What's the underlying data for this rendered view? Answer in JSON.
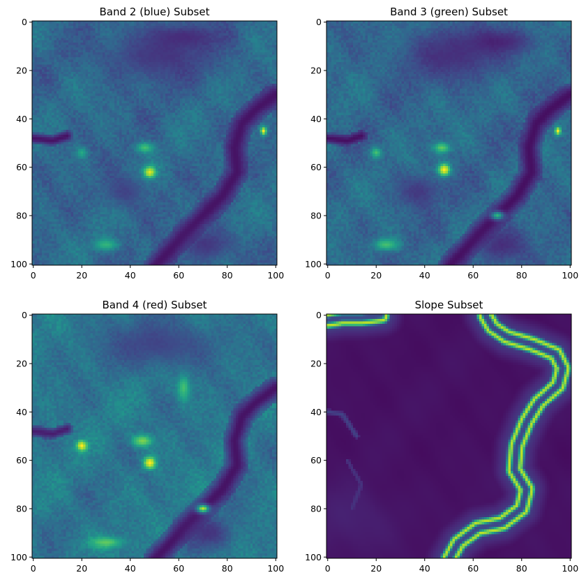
{
  "figure": {
    "colormap": "viridis",
    "colors": {
      "cmap_stops": [
        "#440154",
        "#482878",
        "#3e4a89",
        "#31688e",
        "#26828e",
        "#1f9e89",
        "#35b779",
        "#6ece58",
        "#b5de2b",
        "#fde725"
      ],
      "axis": "#000000",
      "background": "#ffffff"
    }
  },
  "chart_data": [
    {
      "type": "heatmap",
      "title": "Band 2 (blue) Subset",
      "xlabel": "",
      "ylabel": "",
      "grid": false,
      "xlim": [
        0,
        101
      ],
      "ylim": [
        101,
        0
      ],
      "xticks": [
        0,
        20,
        40,
        60,
        80,
        100
      ],
      "yticks": [
        0,
        20,
        40,
        60,
        80,
        100
      ],
      "value_range": [
        0,
        1
      ],
      "description": "Satellite reflectance subset; mostly teal/blue-green values with a dark purple meandering river channel along the right and bottom, and bright yellow hotspots near (48,62) and (95,45)",
      "features": [
        {
          "kind": "river",
          "path": [
            [
              100,
              30
            ],
            [
              92,
              36
            ],
            [
              86,
              42
            ],
            [
              83,
              52
            ],
            [
              84,
              62
            ],
            [
              78,
              72
            ],
            [
              68,
              82
            ],
            [
              62,
              88
            ],
            [
              55,
              96
            ],
            [
              50,
              101
            ]
          ],
          "width": 5,
          "value": 0.05
        },
        {
          "kind": "river",
          "path": [
            [
              0,
              48
            ],
            [
              8,
              49
            ],
            [
              14,
              47
            ]
          ],
          "width": 2.5,
          "value": 0.05
        },
        {
          "kind": "dark_region",
          "center": [
            52,
            14
          ],
          "radius": [
            26,
            12
          ],
          "value": 0.12
        },
        {
          "kind": "dark_region",
          "center": [
            62,
            6
          ],
          "radius": [
            16,
            6
          ],
          "value": 0.08
        },
        {
          "kind": "dark_region",
          "center": [
            38,
            70
          ],
          "radius": [
            10,
            8
          ],
          "value": 0.16
        },
        {
          "kind": "dark_region",
          "center": [
            72,
            92
          ],
          "radius": [
            12,
            8
          ],
          "value": 0.1
        },
        {
          "kind": "bright_spot",
          "center": [
            48,
            62
          ],
          "radius": [
            3,
            3
          ],
          "value": 0.95
        },
        {
          "kind": "bright_spot",
          "center": [
            95,
            45
          ],
          "radius": [
            1.5,
            2
          ],
          "value": 1.0
        },
        {
          "kind": "bright_spot",
          "center": [
            46,
            52
          ],
          "radius": [
            4,
            2.5
          ],
          "value": 0.7
        },
        {
          "kind": "bright_spot",
          "center": [
            20,
            54
          ],
          "radius": [
            2.5,
            2.5
          ],
          "value": 0.6
        },
        {
          "kind": "bright_spot",
          "center": [
            30,
            92
          ],
          "radius": [
            6,
            3
          ],
          "value": 0.65
        }
      ]
    },
    {
      "type": "heatmap",
      "title": "Band 3 (green) Subset",
      "xlabel": "",
      "ylabel": "",
      "grid": false,
      "xlim": [
        0,
        101
      ],
      "ylim": [
        101,
        0
      ],
      "xticks": [
        0,
        20,
        40,
        60,
        80,
        100
      ],
      "yticks": [
        0,
        20,
        40,
        60,
        80,
        100
      ],
      "value_range": [
        0,
        1
      ],
      "description": "Same scene as band 2 with slightly higher contrast; bright yellow-green spots near (48,61) and (20,54), dark river channel on the right",
      "features": [
        {
          "kind": "river",
          "path": [
            [
              100,
              30
            ],
            [
              92,
              36
            ],
            [
              86,
              42
            ],
            [
              83,
              52
            ],
            [
              84,
              62
            ],
            [
              78,
              72
            ],
            [
              68,
              82
            ],
            [
              62,
              88
            ],
            [
              55,
              96
            ],
            [
              50,
              101
            ]
          ],
          "width": 5,
          "value": 0.04
        },
        {
          "kind": "river",
          "path": [
            [
              0,
              48
            ],
            [
              8,
              49
            ],
            [
              14,
              47
            ]
          ],
          "width": 2.5,
          "value": 0.04
        },
        {
          "kind": "dark_region",
          "center": [
            52,
            14
          ],
          "radius": [
            26,
            12
          ],
          "value": 0.1
        },
        {
          "kind": "dark_region",
          "center": [
            70,
            8
          ],
          "radius": [
            18,
            6
          ],
          "value": 0.06
        },
        {
          "kind": "dark_region",
          "center": [
            38,
            70
          ],
          "radius": [
            10,
            8
          ],
          "value": 0.12
        },
        {
          "kind": "dark_region",
          "center": [
            72,
            92
          ],
          "radius": [
            12,
            8
          ],
          "value": 0.08
        },
        {
          "kind": "bright_spot",
          "center": [
            48,
            61
          ],
          "radius": [
            3,
            3
          ],
          "value": 1.0
        },
        {
          "kind": "bright_spot",
          "center": [
            95,
            45
          ],
          "radius": [
            1.5,
            2
          ],
          "value": 1.0
        },
        {
          "kind": "bright_spot",
          "center": [
            47,
            52
          ],
          "radius": [
            4,
            2.5
          ],
          "value": 0.75
        },
        {
          "kind": "bright_spot",
          "center": [
            20,
            54
          ],
          "radius": [
            2.5,
            2.5
          ],
          "value": 0.7
        },
        {
          "kind": "bright_spot",
          "center": [
            70,
            80
          ],
          "radius": [
            3,
            2
          ],
          "value": 0.65
        },
        {
          "kind": "bright_spot",
          "center": [
            24,
            92
          ],
          "radius": [
            6,
            3
          ],
          "value": 0.7
        }
      ]
    },
    {
      "type": "heatmap",
      "title": "Band 4 (red) Subset",
      "xlabel": "",
      "ylabel": "",
      "grid": false,
      "xlim": [
        0,
        101
      ],
      "ylim": [
        101,
        0
      ],
      "xticks": [
        0,
        20,
        40,
        60,
        80,
        100
      ],
      "yticks": [
        0,
        20,
        40,
        60,
        80,
        100
      ],
      "value_range": [
        0,
        1
      ],
      "description": "Greener overall than bands 2 and 3; bright spots at (20,54), (48,61) and (70,80), dark purple river along the right side",
      "features": [
        {
          "kind": "river",
          "path": [
            [
              100,
              30
            ],
            [
              92,
              36
            ],
            [
              86,
              42
            ],
            [
              83,
              52
            ],
            [
              84,
              62
            ],
            [
              78,
              72
            ],
            [
              68,
              82
            ],
            [
              62,
              88
            ],
            [
              55,
              96
            ],
            [
              50,
              101
            ]
          ],
          "width": 5,
          "value": 0.05
        },
        {
          "kind": "river",
          "path": [
            [
              0,
              48
            ],
            [
              8,
              49
            ],
            [
              14,
              47
            ]
          ],
          "width": 2.5,
          "value": 0.08
        },
        {
          "kind": "dark_region",
          "center": [
            52,
            12
          ],
          "radius": [
            26,
            12
          ],
          "value": 0.15
        },
        {
          "kind": "dark_region",
          "center": [
            72,
            90
          ],
          "radius": [
            12,
            8
          ],
          "value": 0.1
        },
        {
          "kind": "bright_spot",
          "center": [
            20,
            54
          ],
          "radius": [
            2.5,
            2.5
          ],
          "value": 1.0
        },
        {
          "kind": "bright_spot",
          "center": [
            48,
            61
          ],
          "radius": [
            3,
            3
          ],
          "value": 1.0
        },
        {
          "kind": "bright_spot",
          "center": [
            70,
            80
          ],
          "radius": [
            3,
            2
          ],
          "value": 0.9
        },
        {
          "kind": "bright_spot",
          "center": [
            45,
            52
          ],
          "radius": [
            5,
            3
          ],
          "value": 0.8
        },
        {
          "kind": "bright_spot",
          "center": [
            62,
            30
          ],
          "radius": [
            3,
            6
          ],
          "value": 0.7
        },
        {
          "kind": "bright_spot",
          "center": [
            30,
            94
          ],
          "radius": [
            8,
            3
          ],
          "value": 0.75
        }
      ]
    },
    {
      "type": "heatmap",
      "title": "Slope Subset",
      "xlabel": "",
      "ylabel": "",
      "grid": false,
      "xlim": [
        0,
        101
      ],
      "ylim": [
        101,
        0
      ],
      "xticks": [
        0,
        20,
        40,
        60,
        80,
        100
      ],
      "yticks": [
        0,
        20,
        40,
        60,
        80,
        100
      ],
      "value_range": [
        0,
        1
      ],
      "description": "Mostly near-zero slope (dark purple) with a bright green/yellow double band tracing the river banks from top-center down the right side to the bottom, plus a short band at top-left",
      "features": [
        {
          "kind": "ridge",
          "path": [
            [
              65,
              0
            ],
            [
              68,
              5
            ],
            [
              74,
              9
            ],
            [
              84,
              12
            ],
            [
              94,
              16
            ],
            [
              97,
              22
            ],
            [
              95,
              29
            ],
            [
              87,
              36
            ],
            [
              82,
              44
            ],
            [
              78,
              54
            ],
            [
              77,
              64
            ],
            [
              82,
              72
            ],
            [
              80,
              80
            ],
            [
              72,
              86
            ],
            [
              62,
              88
            ],
            [
              54,
              94
            ],
            [
              50,
              101
            ]
          ],
          "width": 2.5,
          "value": 0.9
        },
        {
          "kind": "ridge",
          "path": [
            [
              0,
              2
            ],
            [
              6,
              1
            ],
            [
              14,
              1
            ],
            [
              22,
              0
            ]
          ],
          "width": 2.5,
          "value": 0.9
        },
        {
          "kind": "faint_channel",
          "path": [
            [
              0,
              40
            ],
            [
              6,
              41
            ],
            [
              12,
              50
            ]
          ],
          "width": 1.2,
          "value": 0.2
        },
        {
          "kind": "faint_channel",
          "path": [
            [
              8,
              60
            ],
            [
              14,
              70
            ],
            [
              10,
              80
            ]
          ],
          "width": 1,
          "value": 0.15
        }
      ]
    }
  ]
}
